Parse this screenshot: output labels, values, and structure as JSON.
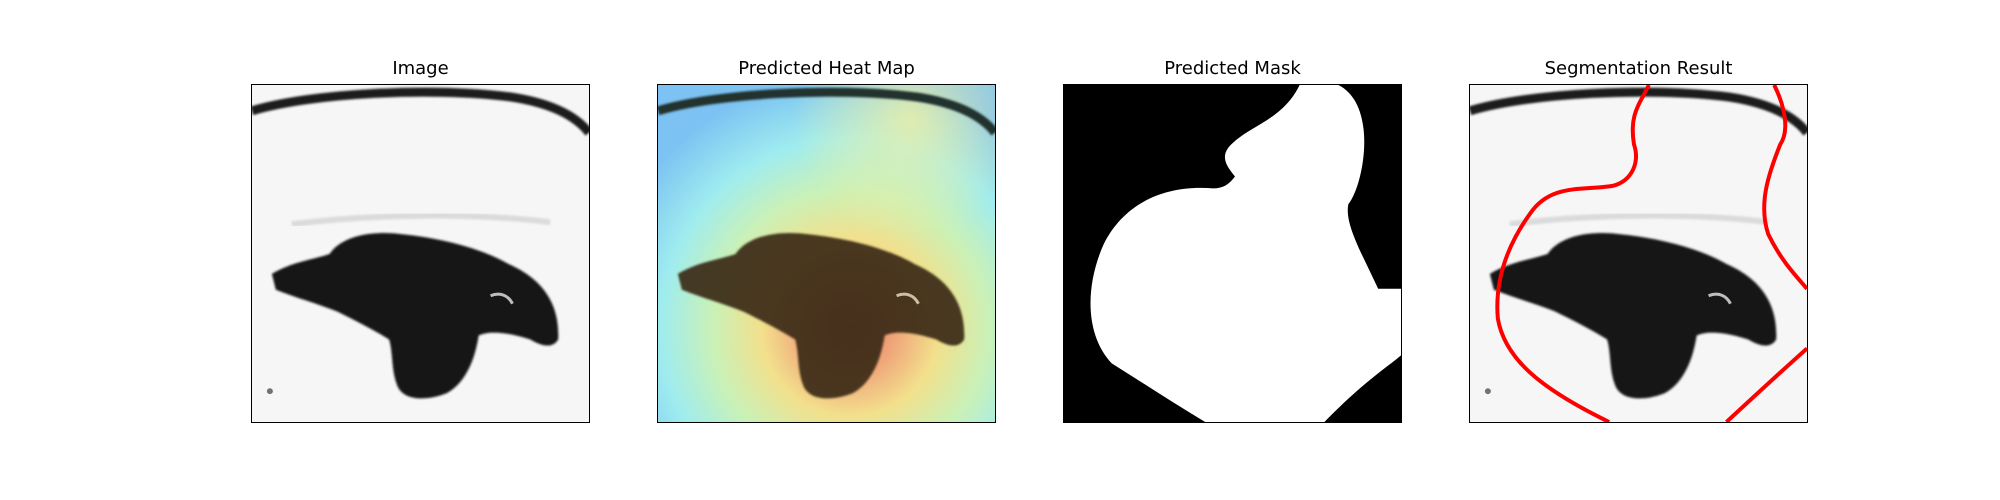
{
  "figure": {
    "panels": [
      {
        "id": "image",
        "title": "Image"
      },
      {
        "id": "heatmap",
        "title": "Predicted Heat Map"
      },
      {
        "id": "mask",
        "title": "Predicted Mask"
      },
      {
        "id": "segmentation",
        "title": "Segmentation Result"
      }
    ]
  },
  "colors": {
    "background": "#ffffff",
    "lesion": "#141414",
    "skin": "#f4f4f4",
    "mask_fg": "#ffffff",
    "mask_bg": "#000000",
    "contour": "#ff0000"
  }
}
